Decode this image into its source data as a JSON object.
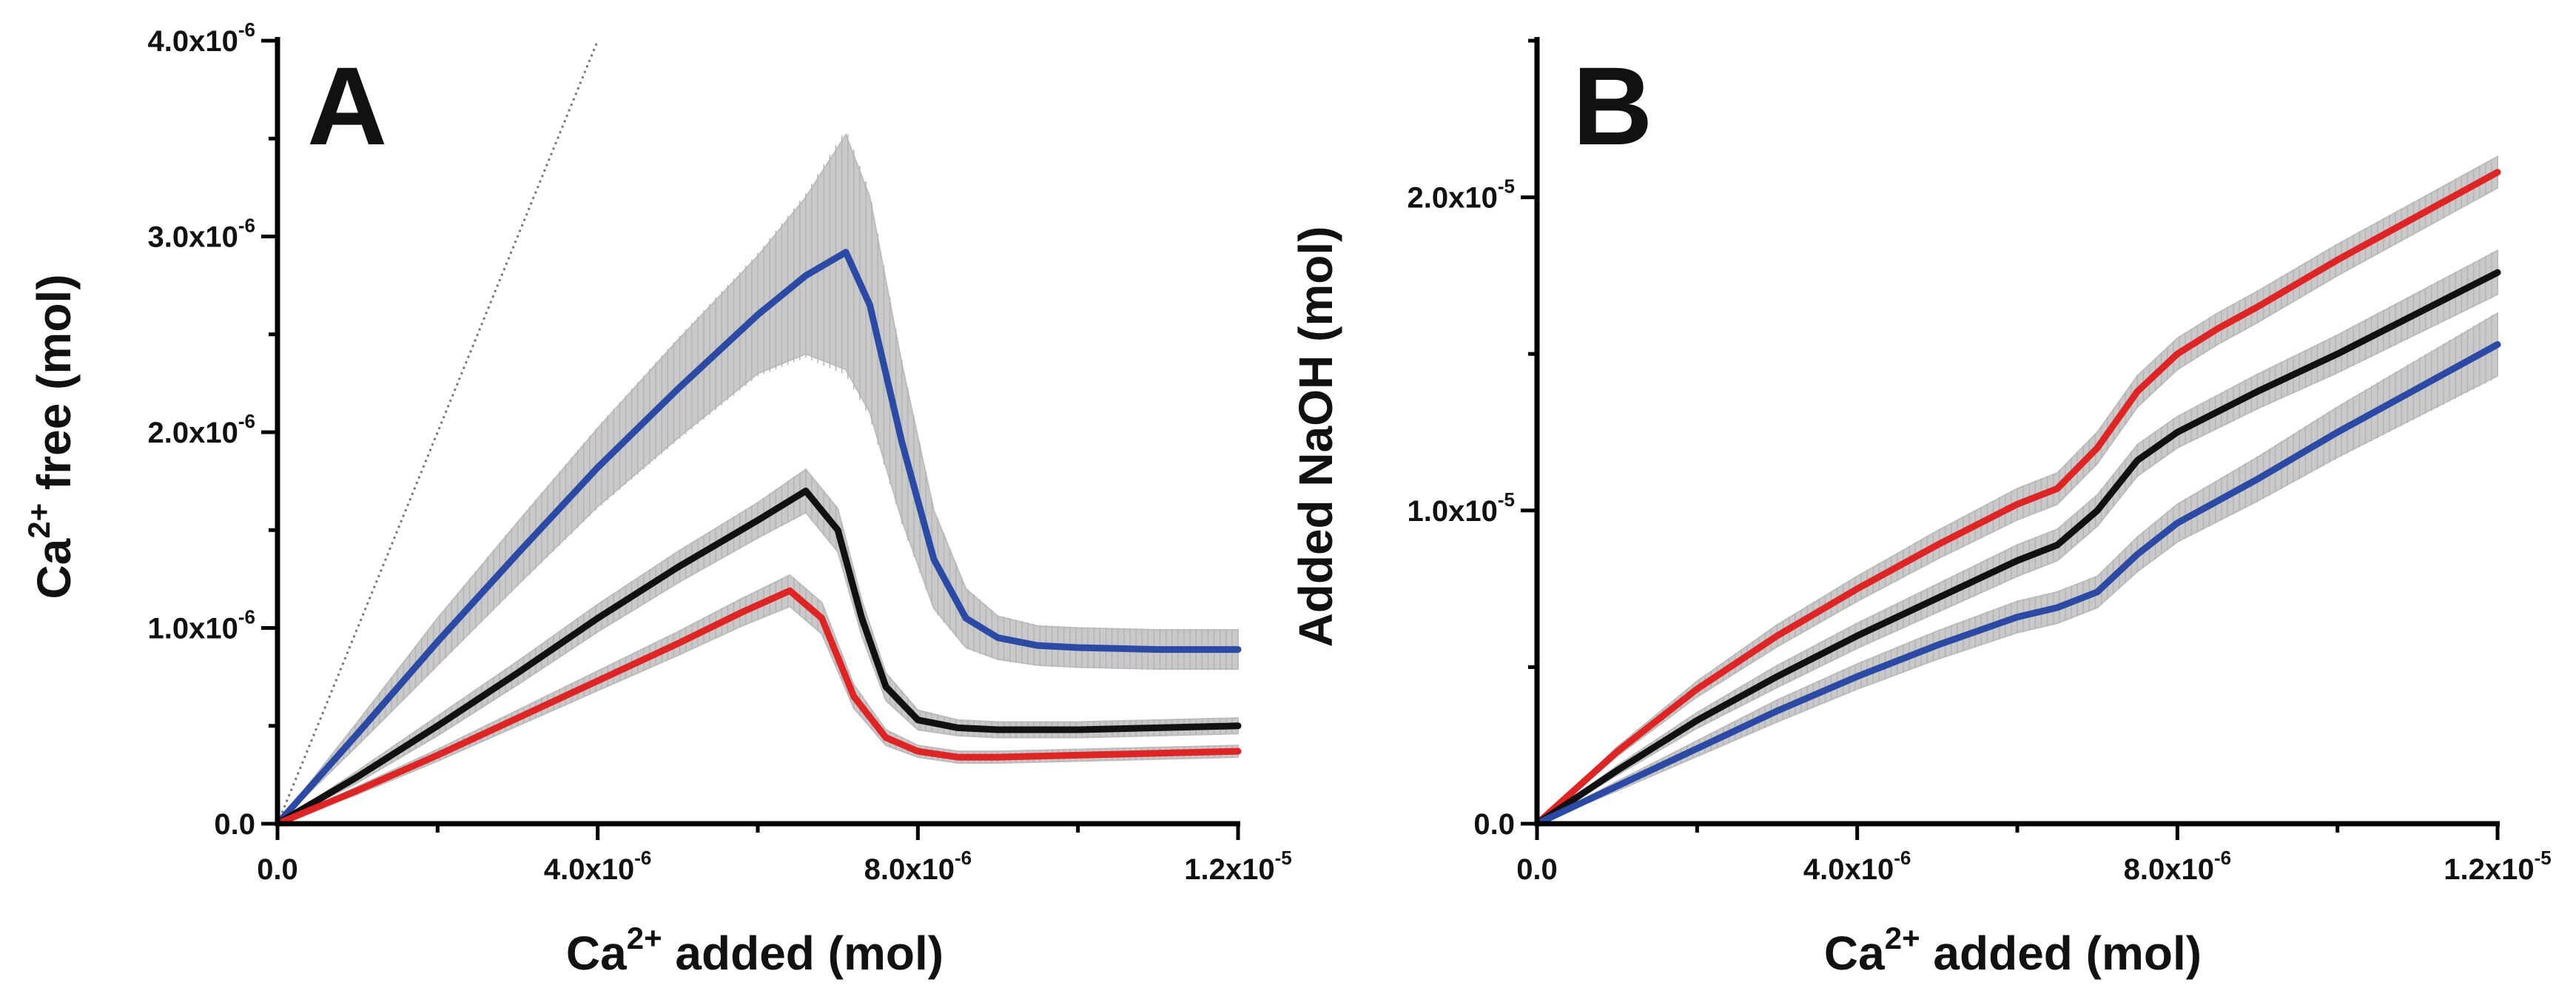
{
  "chart_data": [
    {
      "type": "line",
      "panel_label": "A",
      "xlabel": {
        "base": "Ca",
        "sup": "2+",
        "rest": " added (mol)"
      },
      "ylabel": {
        "base": "Ca",
        "sup": "2+",
        "rest": " free (mol)"
      },
      "xlim": [
        0,
        1.2e-05
      ],
      "ylim": [
        0,
        4e-06
      ],
      "x_ticks": [
        {
          "value": 0,
          "base": "0.0",
          "exp": ""
        },
        {
          "value": 4e-06,
          "base": "4.0x10",
          "exp": "-6"
        },
        {
          "value": 8e-06,
          "base": "8.0x10",
          "exp": "-6"
        },
        {
          "value": 1.2e-05,
          "base": "1.2x10",
          "exp": "-5"
        }
      ],
      "y_ticks": [
        {
          "value": 0,
          "base": "0.0",
          "exp": ""
        },
        {
          "value": 1e-06,
          "base": "1.0x10",
          "exp": "-6"
        },
        {
          "value": 2e-06,
          "base": "2.0x10",
          "exp": "-6"
        },
        {
          "value": 3e-06,
          "base": "3.0x10",
          "exp": "-6"
        },
        {
          "value": 4e-06,
          "base": "4.0x10",
          "exp": "-6"
        }
      ],
      "reference_line": {
        "name": "identity",
        "x": [
          0,
          4e-06
        ],
        "y": [
          0,
          4e-06
        ],
        "style": "dotted"
      },
      "series": [
        {
          "name": "blue",
          "color": "#2b4aa6",
          "x": [
            0,
            1e-06,
            2e-06,
            3e-06,
            4e-06,
            5e-06,
            6e-06,
            6.6e-06,
            7.1e-06,
            7.4e-06,
            7.8e-06,
            8.2e-06,
            8.6e-06,
            9e-06,
            9.5e-06,
            1e-05,
            1.1e-05,
            1.2e-05
          ],
          "y": [
            0,
            4.6e-07,
            9.3e-07,
            1.38e-06,
            1.82e-06,
            2.22e-06,
            2.6e-06,
            2.8e-06,
            2.92e-06,
            2.65e-06,
            1.95e-06,
            1.35e-06,
            1.05e-06,
            9.5e-07,
            9.1e-07,
            9e-07,
            8.9e-07,
            8.9e-07
          ],
          "err": [
            0,
            6e-08,
            1.2e-07,
            1.6e-07,
            2e-07,
            2.5e-07,
            3e-07,
            4e-07,
            6e-07,
            5.5e-07,
            4e-07,
            2.5e-07,
            1.5e-07,
            1.1e-07,
            1e-07,
            1e-07,
            1e-07,
            1e-07
          ]
        },
        {
          "name": "black",
          "color": "#111111",
          "x": [
            0,
            1e-06,
            2e-06,
            3e-06,
            4e-06,
            5e-06,
            6e-06,
            6.6e-06,
            7e-06,
            7.3e-06,
            7.6e-06,
            8e-06,
            8.5e-06,
            9e-06,
            1e-05,
            1.1e-05,
            1.2e-05
          ],
          "y": [
            0,
            2.4e-07,
            5e-07,
            7.7e-07,
            1.05e-06,
            1.31e-06,
            1.55e-06,
            1.7e-06,
            1.5e-06,
            1.05e-06,
            7e-07,
            5.3e-07,
            4.9e-07,
            4.8e-07,
            4.8e-07,
            4.9e-07,
            5e-07
          ],
          "err": [
            0,
            3e-08,
            5e-08,
            6e-08,
            7e-08,
            8e-08,
            9e-08,
            1.1e-07,
            1.1e-07,
            9e-08,
            7e-08,
            5e-08,
            4e-08,
            4e-08,
            4e-08,
            4e-08,
            4e-08
          ]
        },
        {
          "name": "red",
          "color": "#e02323",
          "x": [
            0,
            1e-06,
            2e-06,
            3e-06,
            4e-06,
            5e-06,
            5.8e-06,
            6.4e-06,
            6.8e-06,
            7.2e-06,
            7.6e-06,
            8e-06,
            8.5e-06,
            9e-06,
            1e-05,
            1.1e-05,
            1.2e-05
          ],
          "y": [
            0,
            1.7e-07,
            3.5e-07,
            5.4e-07,
            7.3e-07,
            9.2e-07,
            1.08e-06,
            1.19e-06,
            1.05e-06,
            6.5e-07,
            4.4e-07,
            3.7e-07,
            3.4e-07,
            3.4e-07,
            3.5e-07,
            3.6e-07,
            3.7e-07
          ],
          "err": [
            0,
            2e-08,
            3e-08,
            4e-08,
            5e-08,
            6e-08,
            7e-08,
            8e-08,
            8e-08,
            6e-08,
            4e-08,
            3e-08,
            3e-08,
            3e-08,
            3e-08,
            3e-08,
            3e-08
          ]
        }
      ]
    },
    {
      "type": "line",
      "panel_label": "B",
      "xlabel": {
        "base": "Ca",
        "sup": "2+",
        "rest": " added (mol)"
      },
      "ylabel": {
        "base": "",
        "sup": "",
        "rest": "Added NaOH (mol)"
      },
      "xlim": [
        0,
        1.2e-05
      ],
      "ylim": [
        0,
        2.5e-05
      ],
      "x_ticks": [
        {
          "value": 0,
          "base": "0.0",
          "exp": ""
        },
        {
          "value": 4e-06,
          "base": "4.0x10",
          "exp": "-6"
        },
        {
          "value": 8e-06,
          "base": "8.0x10",
          "exp": "-6"
        },
        {
          "value": 1.2e-05,
          "base": "1.2x10",
          "exp": "-5"
        }
      ],
      "y_ticks": [
        {
          "value": 0,
          "base": "0.0",
          "exp": ""
        },
        {
          "value": 1e-05,
          "base": "1.0x10",
          "exp": "-5"
        },
        {
          "value": 2e-05,
          "base": "2.0x10",
          "exp": "-5"
        }
      ],
      "series": [
        {
          "name": "red",
          "color": "#e02323",
          "x": [
            0,
            1e-06,
            2e-06,
            3e-06,
            4e-06,
            5e-06,
            6e-06,
            6.5e-06,
            7e-06,
            7.5e-06,
            8e-06,
            8.5e-06,
            9e-06,
            1e-05,
            1.1e-05,
            1.2e-05
          ],
          "y": [
            0,
            2.3e-06,
            4.3e-06,
            6e-06,
            7.5e-06,
            8.9e-06,
            1.02e-05,
            1.07e-05,
            1.2e-05,
            1.38e-05,
            1.5e-05,
            1.58e-05,
            1.65e-05,
            1.8e-05,
            1.94e-05,
            2.08e-05
          ],
          "err": [
            0,
            1.5e-07,
            2.5e-07,
            3.5e-07,
            4e-07,
            4.5e-07,
            5e-07,
            5e-07,
            5e-07,
            5e-07,
            5e-07,
            5e-07,
            5e-07,
            5e-07,
            5e-07,
            5e-07
          ]
        },
        {
          "name": "black",
          "color": "#111111",
          "x": [
            0,
            1e-06,
            2e-06,
            3e-06,
            4e-06,
            5e-06,
            6e-06,
            6.5e-06,
            7e-06,
            7.5e-06,
            8e-06,
            9e-06,
            1e-05,
            1.1e-05,
            1.2e-05
          ],
          "y": [
            0,
            1.7e-06,
            3.3e-06,
            4.7e-06,
            6e-06,
            7.2e-06,
            8.4e-06,
            8.9e-06,
            1e-05,
            1.16e-05,
            1.25e-05,
            1.38e-05,
            1.5e-05,
            1.63e-05,
            1.76e-05
          ],
          "err": [
            0,
            1.5e-07,
            2.5e-07,
            3.5e-07,
            4e-07,
            4.5e-07,
            5e-07,
            5e-07,
            5e-07,
            5e-07,
            5e-07,
            5.5e-07,
            6e-07,
            6.5e-07,
            7e-07
          ]
        },
        {
          "name": "blue",
          "color": "#2b4aa6",
          "x": [
            0,
            1e-06,
            2e-06,
            3e-06,
            4e-06,
            5e-06,
            6e-06,
            6.5e-06,
            7e-06,
            7.5e-06,
            8e-06,
            9e-06,
            1e-05,
            1.1e-05,
            1.2e-05
          ],
          "y": [
            0,
            1.2e-06,
            2.4e-06,
            3.6e-06,
            4.7e-06,
            5.7e-06,
            6.6e-06,
            6.9e-06,
            7.4e-06,
            8.6e-06,
            9.6e-06,
            1.1e-05,
            1.25e-05,
            1.39e-05,
            1.53e-05
          ],
          "err": [
            0,
            1.5e-07,
            2.5e-07,
            3.5e-07,
            4e-07,
            4.5e-07,
            5e-07,
            5e-07,
            5e-07,
            5.5e-07,
            6e-07,
            7e-07,
            8e-07,
            9e-07,
            1e-06
          ]
        }
      ]
    }
  ]
}
